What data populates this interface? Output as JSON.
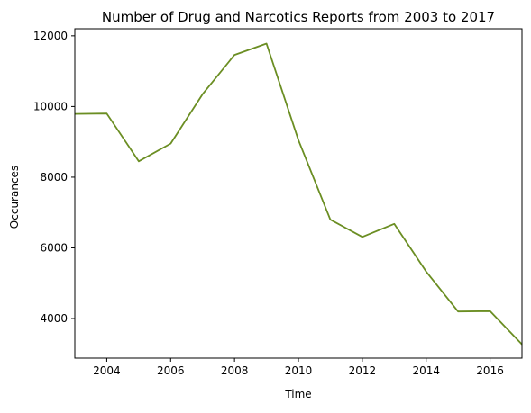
{
  "chart_data": {
    "type": "line",
    "title": "Number of Drug and Narcotics Reports from 2003 to 2017",
    "xlabel": "Time",
    "ylabel": "Occurances",
    "xlim": [
      2003,
      2017
    ],
    "ylim": [
      2880,
      12200
    ],
    "xticks": [
      2004,
      2006,
      2008,
      2010,
      2012,
      2014,
      2016
    ],
    "yticks": [
      4000,
      6000,
      8000,
      10000,
      12000
    ],
    "grid": false,
    "legend": "none",
    "series": [
      {
        "color": "#6b8e23",
        "x": [
          2003,
          2004,
          2005,
          2006,
          2007,
          2008,
          2009,
          2010,
          2011,
          2012,
          2013,
          2014,
          2015,
          2016,
          2017
        ],
        "values": [
          9790,
          9800,
          8450,
          8950,
          10350,
          11460,
          11780,
          9050,
          6800,
          6310,
          6680,
          5330,
          4200,
          4210,
          3270
        ]
      }
    ]
  }
}
